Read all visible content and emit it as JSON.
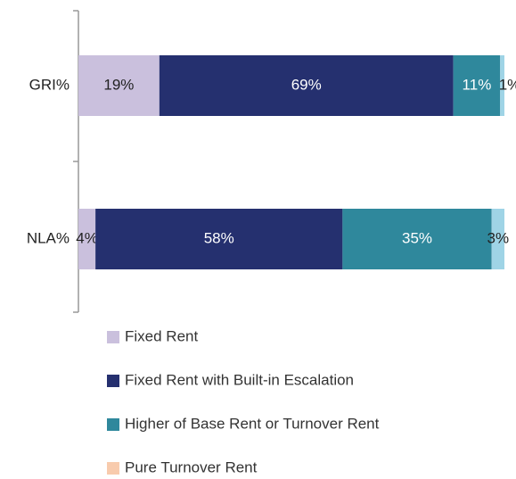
{
  "chart_data": {
    "type": "stacked-bar-horizontal",
    "categories": [
      "GRI%",
      "NLA%"
    ],
    "xlim": [
      0,
      100
    ],
    "series": [
      {
        "name": "Fixed Rent",
        "color": "#cac0dd",
        "values": [
          19,
          4
        ],
        "value_labels": [
          "19%",
          "4%"
        ]
      },
      {
        "name": "Fixed Rent with Built-in Escalation",
        "color": "#25306f",
        "values": [
          69,
          58
        ],
        "value_labels": [
          "69%",
          "58%"
        ]
      },
      {
        "name": "Higher of Base Rent or Turnover Rent",
        "color": "#2f889c",
        "values": [
          11,
          35
        ],
        "value_labels": [
          "11%",
          "35%"
        ]
      },
      {
        "name": "Pure Turnover Rent",
        "color": "#9fd4e6",
        "legend_color": "#f8cbad",
        "values": [
          1,
          3
        ],
        "value_labels": [
          "1%",
          "3%"
        ]
      }
    ],
    "legend": "bottom"
  }
}
